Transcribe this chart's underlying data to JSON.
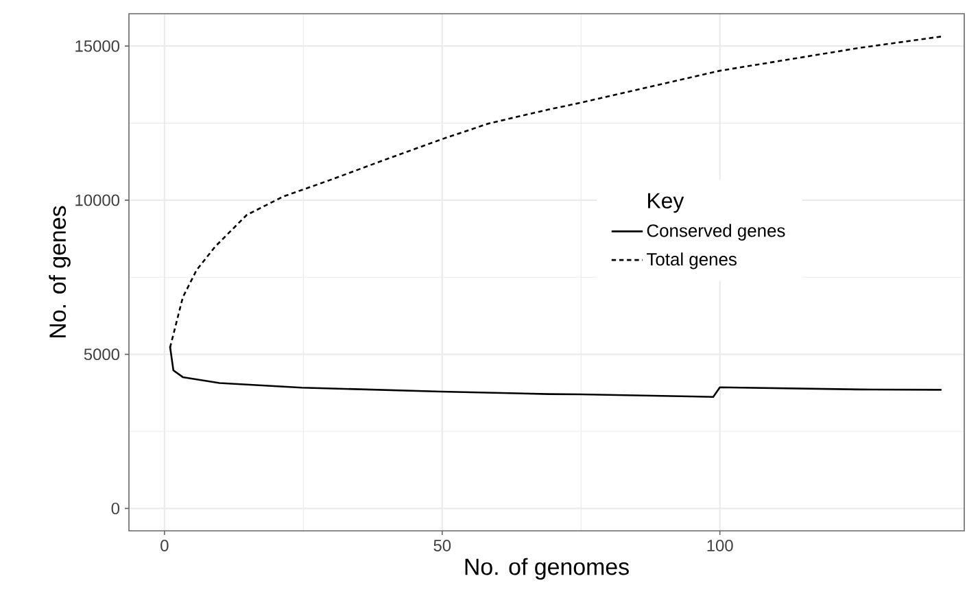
{
  "chart_data": {
    "type": "line",
    "xlabel": "No. of genomes",
    "ylabel": "No. of genes",
    "legend_title": "Key",
    "xlim": [
      -6.4,
      144
    ],
    "ylim": [
      -725,
      16050
    ],
    "xticks": [
      0,
      50,
      100
    ],
    "yticks": [
      0,
      5000,
      10000,
      15000
    ],
    "grid": true,
    "legend": "right",
    "marker": "none",
    "series": [
      {
        "name": "Conserved genes",
        "color": "#000000",
        "line_style": "solid",
        "x": [
          1,
          1.6,
          3.3,
          9.9,
          24.7,
          49.8,
          69.1,
          74.9,
          98.8,
          100,
          125.1,
          139.9
        ],
        "values": [
          5250,
          4480,
          4260,
          4070,
          3920,
          3790,
          3710,
          3700,
          3620,
          3930,
          3860,
          3850
        ]
      },
      {
        "name": "Total genes",
        "color": "#000000",
        "line_style": "dashed",
        "x": [
          1,
          3.3,
          5.8,
          9.1,
          14.8,
          21.4,
          29.6,
          39.5,
          49.8,
          58.4,
          69.1,
          74.9,
          100,
          125.1,
          139.9
        ],
        "values": [
          5220,
          6850,
          7740,
          8490,
          9520,
          10120,
          10640,
          11300,
          11970,
          12490,
          12940,
          13160,
          14200,
          14940,
          15310
        ]
      }
    ]
  }
}
